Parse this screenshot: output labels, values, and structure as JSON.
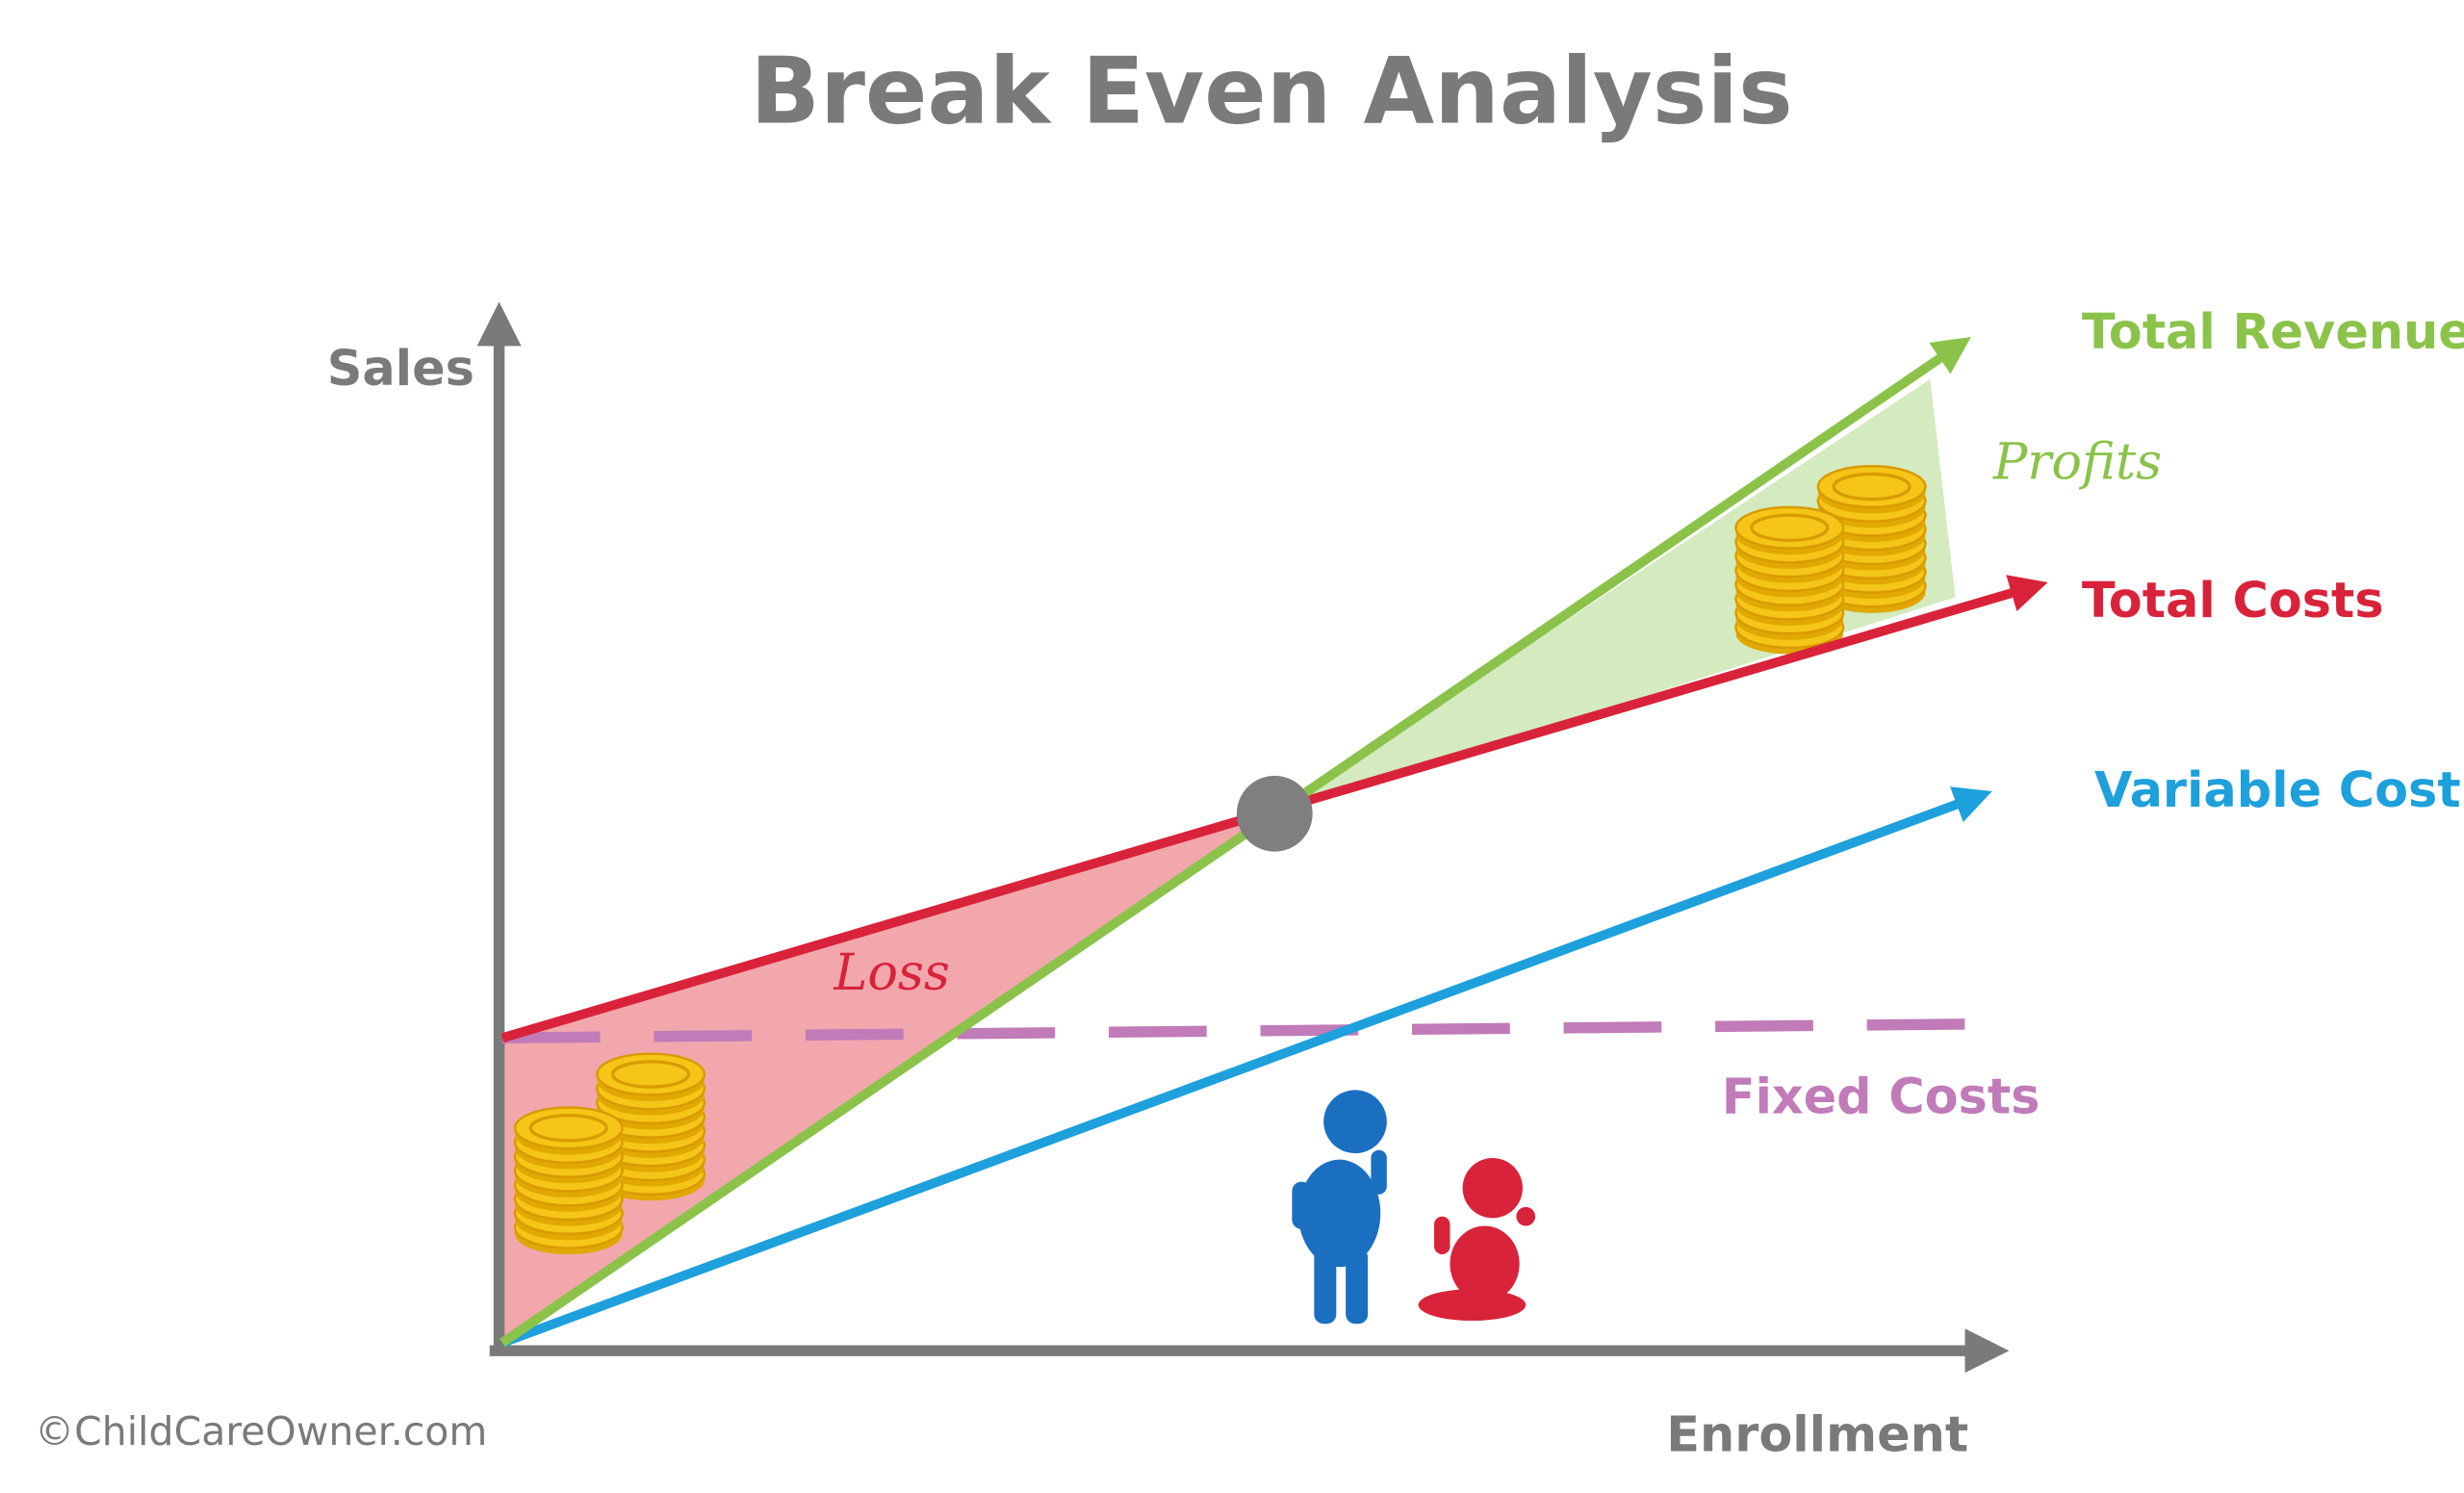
{
  "title": "Break Even Analysis",
  "axes": {
    "y_label": "Sales",
    "x_label": "Enrollment"
  },
  "lines": [
    {
      "label": "Total Revenue"
    },
    {
      "label": "Total Costs"
    },
    {
      "label": "Variable Cost"
    },
    {
      "label": "Fixed Costs"
    }
  ],
  "regions": {
    "profit": "Profits",
    "loss": "Loss"
  },
  "credit": "©ChildCareOwner.com"
}
